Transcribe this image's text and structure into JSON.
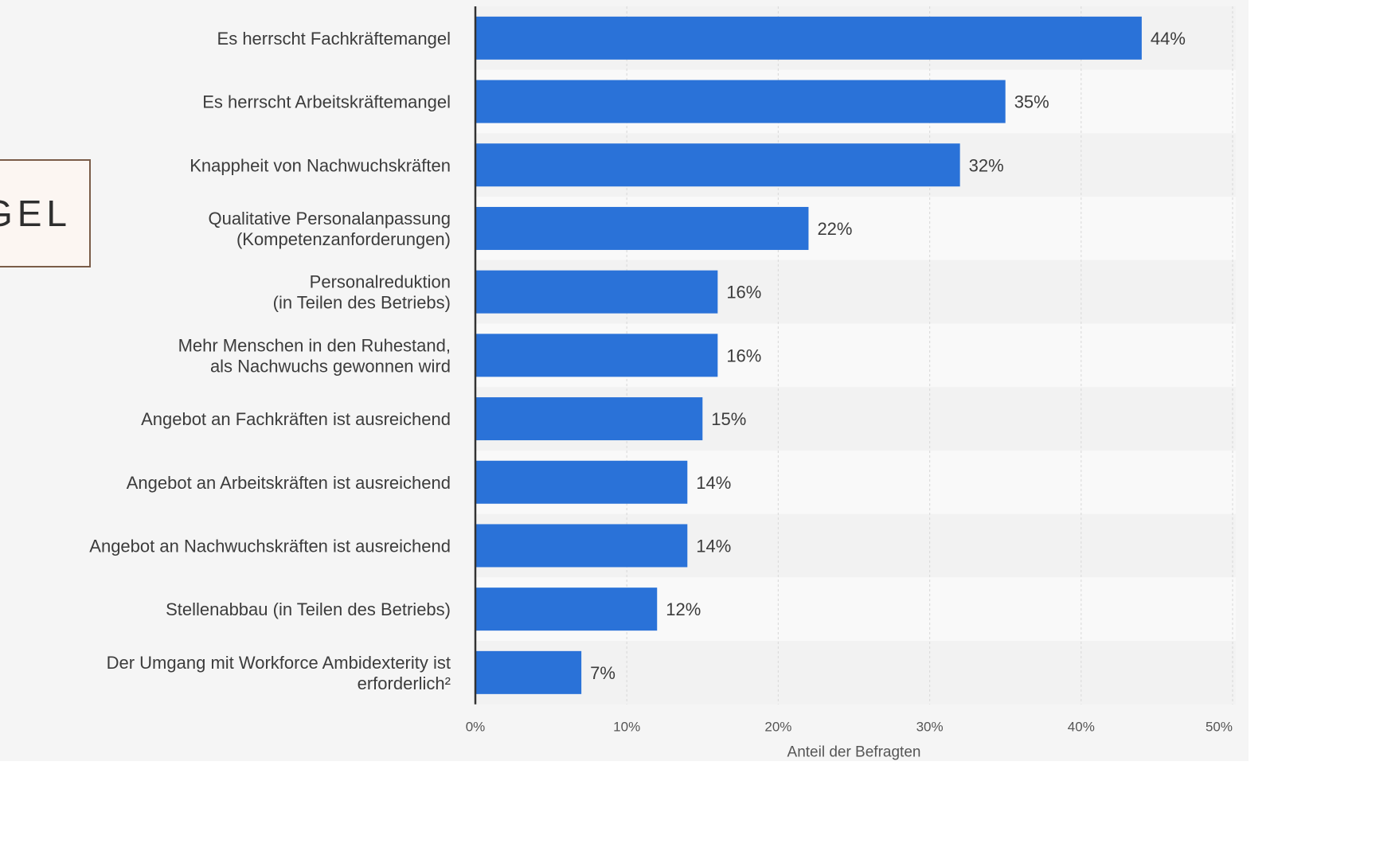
{
  "overlay": {
    "text": "GEL"
  },
  "chart_data": {
    "type": "bar",
    "orientation": "horizontal",
    "categories": [
      [
        "Es herrscht Fachkräftemangel"
      ],
      [
        "Es herrscht Arbeitskräftemangel"
      ],
      [
        "Knappheit von Nachwuchskräften"
      ],
      [
        "Qualitative Personalanpassung",
        "(Kompetenzanforderungen)"
      ],
      [
        "Personalreduktion",
        "(in Teilen des Betriebs)"
      ],
      [
        "Mehr Menschen in den Ruhestand,",
        "als Nachwuchs gewonnen wird"
      ],
      [
        "Angebot an Fachkräften ist ausreichend"
      ],
      [
        "Angebot an Arbeitskräften ist ausreichend"
      ],
      [
        "Angebot an Nachwuchskräften ist ausreichend"
      ],
      [
        "Stellenabbau (in Teilen des Betriebs)"
      ],
      [
        "Der Umgang mit Workforce Ambidexterity ist",
        "erforderlich²"
      ]
    ],
    "values": [
      44,
      35,
      32,
      22,
      16,
      16,
      15,
      14,
      14,
      12,
      7
    ],
    "value_labels": [
      "44%",
      "35%",
      "32%",
      "22%",
      "16%",
      "16%",
      "15%",
      "14%",
      "14%",
      "12%",
      "7%"
    ],
    "xlim": [
      0,
      50
    ],
    "xticks": [
      0,
      10,
      20,
      30,
      40,
      50
    ],
    "xtick_labels": [
      "0%",
      "10%",
      "20%",
      "30%",
      "40%",
      "50%"
    ],
    "xlabel": "Anteil der Befragten",
    "ylabel": "",
    "title": "",
    "grid": true,
    "colors": {
      "bar": "#2a72d8",
      "band_even": "#f2f2f2",
      "band_odd": "#f9f9f9",
      "grid": "#dcdcdc",
      "axis": "#333333"
    }
  }
}
